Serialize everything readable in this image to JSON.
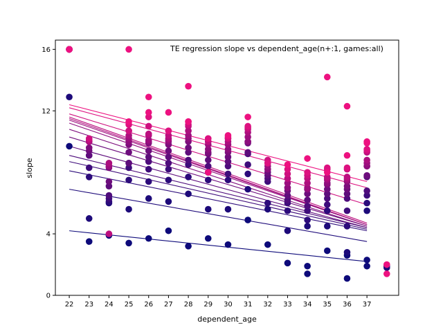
{
  "chart_data": {
    "type": "scatter",
    "title": "TE regression slope vs dependent_age(n+:1, games:all)",
    "xlabel": "dependent_age",
    "ylabel": "slope",
    "xlim": [
      21.3,
      38.6
    ],
    "ylim": [
      0,
      16.6
    ],
    "x_ticks": [
      "22",
      "23",
      "24",
      "25",
      "26",
      "27",
      "28",
      "29",
      "30",
      "31",
      "32",
      "33",
      "34",
      "35",
      "36",
      "37"
    ],
    "y_ticks": [
      "0",
      "4",
      "12",
      "16"
    ],
    "grid": false,
    "legend": "none",
    "color_scale": {
      "low": "#0d0a7a",
      "high": "#ed1180"
    },
    "series": [
      {
        "level": 0.0,
        "line": [
          [
            22,
            4.2
          ],
          [
            37,
            2.2
          ]
        ],
        "points": [
          [
            22,
            9.7
          ],
          [
            23,
            3.5
          ],
          [
            24,
            3.9
          ],
          [
            25,
            3.4
          ],
          [
            26,
            3.7
          ],
          [
            27,
            4.2
          ],
          [
            28,
            3.2
          ],
          [
            29,
            3.7
          ],
          [
            30,
            3.3
          ],
          [
            31,
            4.9
          ],
          [
            32,
            3.3
          ],
          [
            33,
            2.1
          ],
          [
            34,
            1.9
          ],
          [
            34,
            1.4
          ],
          [
            35,
            2.9
          ],
          [
            36,
            2.6
          ],
          [
            36,
            1.1
          ],
          [
            37,
            2.3
          ],
          [
            37,
            1.9
          ],
          [
            38,
            1.9
          ]
        ]
      },
      {
        "level": 0.07,
        "line": [
          [
            22,
            6.9
          ],
          [
            37,
            3.5
          ]
        ],
        "points": [
          [
            22,
            12.9
          ],
          [
            23,
            5.0
          ],
          [
            24,
            6.0
          ],
          [
            25,
            5.6
          ],
          [
            26,
            6.3
          ],
          [
            27,
            6.1
          ],
          [
            28,
            6.6
          ],
          [
            29,
            5.6
          ],
          [
            30,
            5.6
          ],
          [
            31,
            6.9
          ],
          [
            32,
            5.6
          ],
          [
            33,
            4.2
          ],
          [
            34,
            4.5
          ],
          [
            35,
            4.5
          ],
          [
            36,
            2.8
          ],
          [
            37,
            5.5
          ],
          [
            38,
            1.8
          ]
        ]
      },
      {
        "level": 0.14,
        "line": [
          [
            22,
            8.1
          ],
          [
            37,
            4.2
          ]
        ],
        "points": [
          [
            22,
            16.0
          ],
          [
            23,
            7.7
          ],
          [
            24,
            6.1
          ],
          [
            25,
            7.5
          ],
          [
            26,
            7.4
          ],
          [
            27,
            7.5
          ],
          [
            28,
            7.7
          ],
          [
            29,
            7.5
          ],
          [
            30,
            7.5
          ],
          [
            31,
            7.9
          ],
          [
            32,
            6.0
          ],
          [
            33,
            5.5
          ],
          [
            34,
            4.9
          ],
          [
            35,
            5.5
          ],
          [
            36,
            4.5
          ],
          [
            37,
            6.0
          ]
        ]
      },
      {
        "level": 0.22,
        "line": [
          [
            22,
            8.7
          ],
          [
            37,
            4.3
          ]
        ],
        "points": [
          [
            22,
            16.0
          ],
          [
            23,
            8.3
          ],
          [
            24,
            6.3
          ],
          [
            25,
            8.3
          ],
          [
            26,
            8.2
          ],
          [
            27,
            8.2
          ],
          [
            28,
            8.5
          ],
          [
            29,
            8.0
          ],
          [
            30,
            7.9
          ],
          [
            31,
            8.5
          ],
          [
            32,
            7.4
          ],
          [
            33,
            6.0
          ],
          [
            34,
            5.5
          ],
          [
            35,
            5.9
          ],
          [
            36,
            5.5
          ],
          [
            37,
            6.5
          ]
        ]
      },
      {
        "level": 0.29,
        "line": [
          [
            22,
            9.1
          ],
          [
            37,
            4.4
          ]
        ],
        "points": [
          [
            22,
            16.0
          ],
          [
            23,
            9.1
          ],
          [
            24,
            6.5
          ],
          [
            25,
            8.6
          ],
          [
            26,
            8.7
          ],
          [
            27,
            8.6
          ],
          [
            28,
            8.8
          ],
          [
            29,
            8.4
          ],
          [
            30,
            8.4
          ],
          [
            31,
            9.2
          ],
          [
            32,
            7.6
          ],
          [
            33,
            6.2
          ],
          [
            34,
            5.8
          ],
          [
            35,
            6.3
          ],
          [
            36,
            6.3
          ],
          [
            37,
            6.8
          ]
        ]
      },
      {
        "level": 0.36,
        "line": [
          [
            22,
            9.7
          ],
          [
            37,
            4.4
          ]
        ],
        "points": [
          [
            22,
            16.0
          ],
          [
            23,
            9.1
          ],
          [
            24,
            7.1
          ],
          [
            25,
            8.6
          ],
          [
            26,
            9.0
          ],
          [
            27,
            9.0
          ],
          [
            28,
            9.3
          ],
          [
            29,
            8.8
          ],
          [
            30,
            8.7
          ],
          [
            31,
            9.3
          ],
          [
            32,
            7.8
          ],
          [
            33,
            6.5
          ],
          [
            34,
            6.2
          ],
          [
            35,
            6.6
          ],
          [
            36,
            6.6
          ],
          [
            37,
            7.7
          ]
        ]
      },
      {
        "level": 0.43,
        "line": [
          [
            22,
            10.3
          ],
          [
            37,
            4.5
          ]
        ],
        "points": [
          [
            22,
            16.0
          ],
          [
            23,
            9.4
          ],
          [
            24,
            7.4
          ],
          [
            25,
            9.3
          ],
          [
            26,
            9.4
          ],
          [
            27,
            9.4
          ],
          [
            28,
            9.6
          ],
          [
            29,
            9.2
          ],
          [
            30,
            9.0
          ],
          [
            31,
            9.9
          ],
          [
            32,
            8.0
          ],
          [
            33,
            6.8
          ],
          [
            34,
            6.6
          ],
          [
            35,
            6.9
          ],
          [
            36,
            6.9
          ],
          [
            37,
            7.8
          ]
        ]
      },
      {
        "level": 0.5,
        "line": [
          [
            22,
            10.8
          ],
          [
            37,
            4.5
          ]
        ],
        "points": [
          [
            22,
            16.0
          ],
          [
            23,
            9.6
          ],
          [
            24,
            8.3
          ],
          [
            25,
            9.8
          ],
          [
            26,
            9.9
          ],
          [
            27,
            9.8
          ],
          [
            28,
            10.0
          ],
          [
            29,
            9.3
          ],
          [
            30,
            9.3
          ],
          [
            31,
            10.0
          ],
          [
            32,
            8.2
          ],
          [
            33,
            7.0
          ],
          [
            34,
            6.9
          ],
          [
            35,
            7.2
          ],
          [
            36,
            7.1
          ],
          [
            37,
            8.4
          ]
        ]
      },
      {
        "level": 0.57,
        "line": [
          [
            22,
            11.2
          ],
          [
            37,
            4.6
          ]
        ],
        "points": [
          [
            22,
            16.0
          ],
          [
            23,
            10.0
          ],
          [
            24,
            8.4
          ],
          [
            25,
            10.0
          ],
          [
            26,
            10.0
          ],
          [
            27,
            10.0
          ],
          [
            28,
            10.2
          ],
          [
            29,
            9.5
          ],
          [
            30,
            9.5
          ],
          [
            31,
            10.0
          ],
          [
            32,
            8.2
          ],
          [
            33,
            7.0
          ],
          [
            34,
            6.9
          ],
          [
            35,
            7.3
          ],
          [
            36,
            7.4
          ],
          [
            37,
            8.4
          ]
        ]
      },
      {
        "level": 0.64,
        "line": [
          [
            22,
            11.4
          ],
          [
            37,
            4.6
          ]
        ],
        "points": [
          [
            22,
            16.0
          ],
          [
            23,
            10.0
          ],
          [
            24,
            8.4
          ],
          [
            25,
            10.2
          ],
          [
            26,
            10.1
          ],
          [
            27,
            10.1
          ],
          [
            28,
            10.4
          ],
          [
            29,
            9.8
          ],
          [
            30,
            9.8
          ],
          [
            31,
            10.3
          ],
          [
            32,
            8.4
          ],
          [
            33,
            7.3
          ],
          [
            34,
            7.0
          ],
          [
            35,
            7.5
          ],
          [
            36,
            7.5
          ],
          [
            37,
            8.6
          ]
        ]
      },
      {
        "level": 0.71,
        "line": [
          [
            22,
            11.5
          ],
          [
            37,
            4.6
          ]
        ],
        "points": [
          [
            22,
            16.0
          ],
          [
            23,
            10.0
          ],
          [
            24,
            8.6
          ],
          [
            25,
            10.4
          ],
          [
            26,
            10.4
          ],
          [
            27,
            10.2
          ],
          [
            28,
            10.7
          ],
          [
            29,
            10.0
          ],
          [
            30,
            10.0
          ],
          [
            31,
            10.6
          ],
          [
            32,
            8.6
          ],
          [
            33,
            7.6
          ],
          [
            34,
            7.3
          ],
          [
            35,
            7.6
          ],
          [
            36,
            7.6
          ],
          [
            37,
            8.8
          ]
        ]
      },
      {
        "level": 0.78,
        "line": [
          [
            22,
            11.6
          ],
          [
            37,
            4.7
          ]
        ],
        "points": [
          [
            22,
            16.0
          ],
          [
            23,
            10.1
          ],
          [
            24,
            4.0
          ],
          [
            25,
            10.7
          ],
          [
            26,
            10.5
          ],
          [
            27,
            10.4
          ],
          [
            28,
            11.0
          ],
          [
            29,
            10.0
          ],
          [
            30,
            10.2
          ],
          [
            31,
            10.8
          ],
          [
            32,
            8.6
          ],
          [
            33,
            7.6
          ],
          [
            34,
            7.6
          ],
          [
            35,
            7.7
          ],
          [
            36,
            7.7
          ],
          [
            37,
            9.3
          ]
        ]
      },
      {
        "level": 0.86,
        "line": [
          [
            22,
            11.8
          ],
          [
            37,
            5.9
          ]
        ],
        "points": [
          [
            22,
            16.0
          ],
          [
            23,
            10.2
          ],
          [
            25,
            10.7
          ],
          [
            26,
            11.0
          ],
          [
            27,
            10.7
          ],
          [
            28,
            11.1
          ],
          [
            29,
            10.2
          ],
          [
            30,
            10.2
          ],
          [
            31,
            10.9
          ],
          [
            32,
            8.8
          ],
          [
            33,
            7.9
          ],
          [
            34,
            7.8
          ],
          [
            35,
            8.2
          ],
          [
            36,
            8.2
          ],
          [
            37,
            9.4
          ]
        ]
      },
      {
        "level": 0.93,
        "line": [
          [
            22,
            12.2
          ],
          [
            37,
            7.0
          ]
        ],
        "points": [
          [
            22,
            16.0
          ],
          [
            25,
            11.1
          ],
          [
            26,
            11.6
          ],
          [
            27,
            10.7
          ],
          [
            28,
            11.3
          ],
          [
            29,
            10.2
          ],
          [
            30,
            10.3
          ],
          [
            31,
            11.0
          ],
          [
            32,
            8.6
          ],
          [
            33,
            8.2
          ],
          [
            34,
            8.0
          ],
          [
            35,
            8.3
          ],
          [
            36,
            8.3
          ],
          [
            37,
            9.5
          ]
        ]
      },
      {
        "level": 1.0,
        "line": [
          [
            22,
            12.4
          ],
          [
            37,
            7.4
          ]
        ],
        "points": [
          [
            22,
            16.0
          ],
          [
            25,
            11.3
          ],
          [
            25,
            16.0
          ],
          [
            26,
            11.9
          ],
          [
            26,
            12.9
          ],
          [
            27,
            11.9
          ],
          [
            28,
            11.3
          ],
          [
            28,
            13.6
          ],
          [
            29,
            8.0
          ],
          [
            30,
            10.4
          ],
          [
            31,
            11.6
          ],
          [
            33,
            8.5
          ],
          [
            34,
            8.9
          ],
          [
            35,
            8.0
          ],
          [
            35,
            14.2
          ],
          [
            36,
            9.1
          ],
          [
            36,
            12.3
          ],
          [
            37,
            10.0
          ],
          [
            37,
            9.9
          ],
          [
            38,
            1.4
          ],
          [
            38,
            2.0
          ]
        ]
      }
    ]
  }
}
